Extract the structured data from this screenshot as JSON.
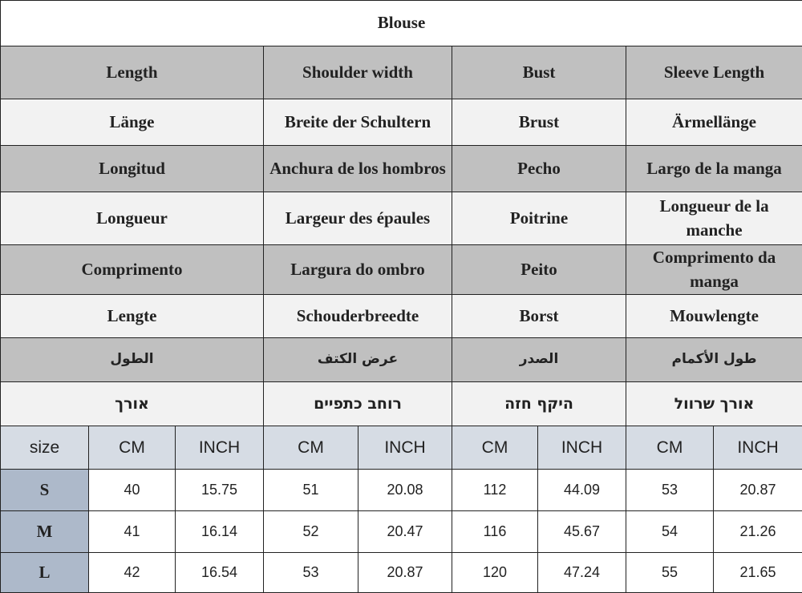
{
  "title": "Blouse",
  "colors": {
    "gray_row": "#c0c0c0",
    "light_row": "#f2f2f2",
    "unit_row": "#d6dce4",
    "size_cell": "#adb9ca"
  },
  "languages": [
    {
      "cells": [
        "Length",
        "Shoulder width",
        "Bust",
        "Sleeve Length"
      ]
    },
    {
      "cells": [
        "Länge",
        "Breite der Schultern",
        "Brust",
        "Ärmellänge"
      ]
    },
    {
      "cells": [
        "Longitud",
        "Anchura de los hombros",
        "Pecho",
        "Largo de la manga"
      ]
    },
    {
      "cells": [
        "Longueur",
        "Largeur des épaules",
        "Poitrine",
        "Longueur de la manche"
      ]
    },
    {
      "cells": [
        "Comprimento",
        "Largura do ombro",
        "Peito",
        "Comprimento da manga"
      ]
    },
    {
      "cells": [
        "Lengte",
        "Schouderbreedte",
        "Borst",
        "Mouwlengte"
      ]
    },
    {
      "cells": [
        "الطول",
        "عرض الكتف",
        "الصدر",
        "طول الأكمام"
      ]
    },
    {
      "cells": [
        "אורך",
        "רוחב כתפיים",
        "היקף חזה",
        "אורך שרוול"
      ]
    }
  ],
  "units": [
    "size",
    "CM",
    "INCH",
    "CM",
    "INCH",
    "CM",
    "INCH",
    "CM",
    "INCH"
  ],
  "rows": [
    [
      "S",
      "40",
      "15.75",
      "51",
      "20.08",
      "112",
      "44.09",
      "53",
      "20.87"
    ],
    [
      "M",
      "41",
      "16.14",
      "52",
      "20.47",
      "116",
      "45.67",
      "54",
      "21.26"
    ],
    [
      "L",
      "42",
      "16.54",
      "53",
      "20.87",
      "120",
      "47.24",
      "55",
      "21.65"
    ]
  ]
}
